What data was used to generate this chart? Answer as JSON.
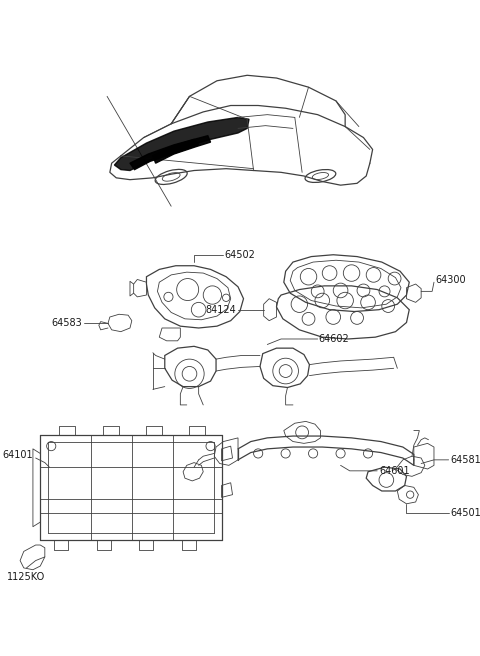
{
  "background_color": "#ffffff",
  "line_color": "#404040",
  "label_color": "#1a1a1a",
  "label_fontsize": 7.0,
  "fig_width": 4.8,
  "fig_height": 6.56,
  "dpi": 100
}
